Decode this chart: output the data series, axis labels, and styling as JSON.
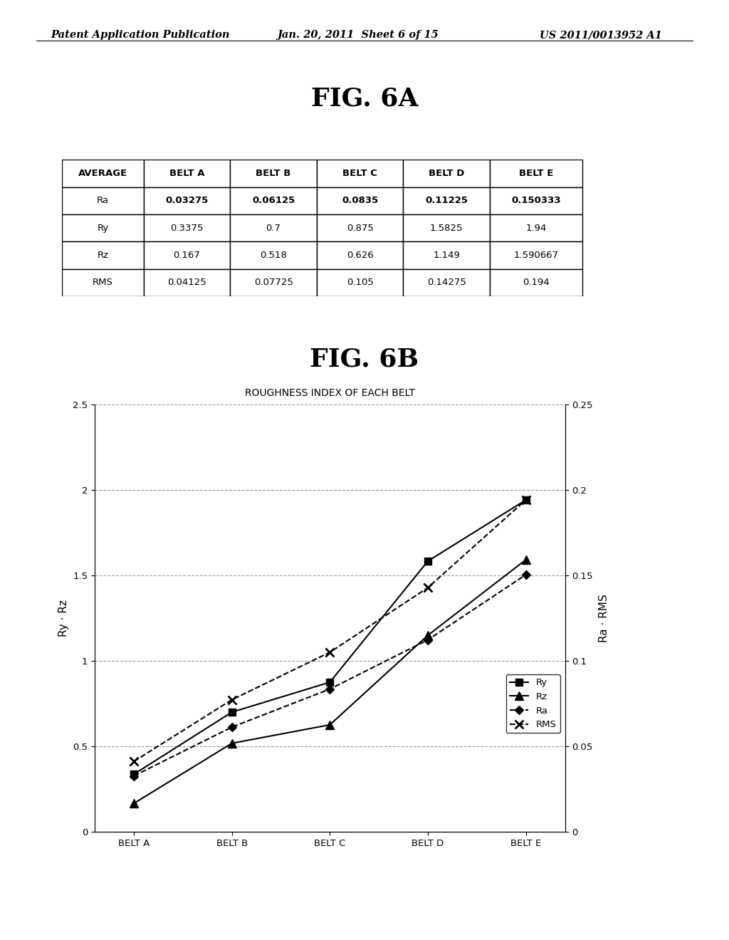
{
  "header_left": "Patent Application Publication",
  "header_mid": "Jan. 20, 2011  Sheet 6 of 15",
  "header_right": "US 2011/0013952 A1",
  "fig6a_title": "FIG. 6A",
  "fig6b_title": "FIG. 6B",
  "table_headers": [
    "AVERAGE",
    "BELT A",
    "BELT B",
    "BELT C",
    "BELT D",
    "BELT E"
  ],
  "table_rows": [
    [
      "Ra",
      "0.03275",
      "0.06125",
      "0.0835",
      "0.11225",
      "0.150333"
    ],
    [
      "Ry",
      "0.3375",
      "0.7",
      "0.875",
      "1.5825",
      "1.94"
    ],
    [
      "Rz",
      "0.167",
      "0.518",
      "0.626",
      "1.149",
      "1.590667"
    ],
    [
      "RMS",
      "0.04125",
      "0.07725",
      "0.105",
      "0.14275",
      "0.194"
    ]
  ],
  "chart_title": "ROUGHNESS INDEX OF EACH BELT",
  "x_labels": [
    "BELT A",
    "BELT B",
    "BELT C",
    "BELT D",
    "BELT E"
  ],
  "Ry": [
    0.3375,
    0.7,
    0.875,
    1.5825,
    1.94
  ],
  "Rz": [
    0.167,
    0.518,
    0.626,
    1.149,
    1.590667
  ],
  "Ra": [
    0.03275,
    0.06125,
    0.0835,
    0.11225,
    0.150333
  ],
  "RMS": [
    0.04125,
    0.07725,
    0.105,
    0.14275,
    0.194
  ],
  "left_ylim": [
    0,
    2.5
  ],
  "right_ylim": [
    0,
    0.25
  ],
  "left_yticks": [
    0,
    0.5,
    1.0,
    1.5,
    2.0,
    2.5
  ],
  "right_yticks": [
    0,
    0.05,
    0.1,
    0.15,
    0.2,
    0.25
  ],
  "left_ylabel": "Ry · Rz",
  "right_ylabel": "Ra · RMS",
  "bg_color": "#ffffff",
  "grid_color": "#999999"
}
